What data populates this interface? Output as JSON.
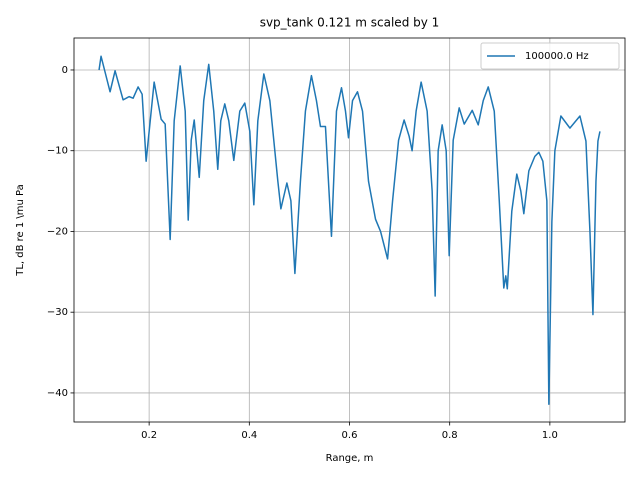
{
  "chart_data": {
    "type": "line",
    "title": "svp_tank 0.121 m scaled by 1",
    "x_label": "Range, m",
    "y_label": "TL, dB re 1 \\mu Pa",
    "xlim": [
      0.05,
      1.15
    ],
    "ylim": [
      -43.6,
      3.96
    ],
    "xticks": [
      0.2,
      0.4,
      0.6,
      0.8,
      {
        "value": 1.0,
        "label": "1.0"
      }
    ],
    "yticks": [
      {
        "value": -40,
        "label": "−40"
      },
      {
        "value": -30,
        "label": "−30"
      },
      {
        "value": -20,
        "label": "−20"
      },
      {
        "value": -10,
        "label": "−10"
      },
      0
    ],
    "grid": true,
    "legend_location": "upper right",
    "x": [
      0.1,
      0.104,
      0.122,
      0.132,
      0.148,
      0.16,
      0.168,
      0.178,
      0.186,
      0.194,
      0.21,
      0.224,
      0.232,
      0.242,
      0.25,
      0.262,
      0.272,
      0.278,
      0.284,
      0.29,
      0.3,
      0.309,
      0.319,
      0.329,
      0.337,
      0.343,
      0.351,
      0.359,
      0.369,
      0.381,
      0.391,
      0.401,
      0.409,
      0.417,
      0.429,
      0.441,
      0.457,
      0.463,
      0.475,
      0.483,
      0.491,
      0.502,
      0.512,
      0.524,
      0.534,
      0.542,
      0.552,
      0.564,
      0.574,
      0.584,
      0.592,
      0.598,
      0.606,
      0.616,
      0.626,
      0.638,
      0.652,
      0.662,
      0.676,
      0.686,
      0.698,
      0.709,
      0.719,
      0.725,
      0.733,
      0.743,
      0.755,
      0.765,
      0.771,
      0.777,
      0.785,
      0.793,
      0.799,
      0.807,
      0.819,
      0.829,
      0.845,
      0.857,
      0.867,
      0.877,
      0.889,
      0.899,
      0.908,
      0.912,
      0.915,
      0.924,
      0.934,
      0.942,
      0.948,
      0.958,
      0.97,
      0.978,
      0.986,
      0.994,
      0.998,
      1.004,
      1.01,
      1.022,
      1.04,
      1.06,
      1.072,
      1.08,
      1.086,
      1.092,
      1.096,
      1.1
    ],
    "series": [
      {
        "name": "100000.0 Hz",
        "color": "#1f77b4",
        "values": [
          0,
          1.7,
          -2.7,
          -0.1,
          -3.7,
          -3.3,
          -3.5,
          -2.1,
          -3.0,
          -11.3,
          -1.5,
          -6.1,
          -6.7,
          -21.0,
          -6.3,
          0.5,
          -5.1,
          -18.6,
          -8.7,
          -6.2,
          -13.3,
          -3.8,
          0.7,
          -5.1,
          -12.3,
          -6.3,
          -4.2,
          -6.3,
          -11.2,
          -5.1,
          -4.1,
          -7.6,
          -16.7,
          -6.3,
          -0.5,
          -3.8,
          -13.8,
          -17.2,
          -14.0,
          -16.2,
          -25.2,
          -13.8,
          -5.1,
          -0.7,
          -3.8,
          -7.0,
          -7.0,
          -20.6,
          -5.1,
          -2.2,
          -5.1,
          -8.4,
          -3.8,
          -2.7,
          -5.1,
          -13.8,
          -18.5,
          -20.0,
          -23.4,
          -16.2,
          -8.7,
          -6.2,
          -8.2,
          -10.0,
          -5.1,
          -1.5,
          -5.1,
          -15.0,
          -28.0,
          -10.0,
          -6.8,
          -10.0,
          -23.0,
          -8.7,
          -4.7,
          -6.7,
          -5.0,
          -6.8,
          -3.8,
          -2.1,
          -5.1,
          -16.2,
          -27.0,
          -25.5,
          -27.1,
          -17.5,
          -12.9,
          -15.0,
          -17.8,
          -12.5,
          -10.7,
          -10.2,
          -11.3,
          -16.2,
          -41.4,
          -18.8,
          -10.0,
          -5.7,
          -7.2,
          -5.7,
          -8.8,
          -20.0,
          -30.3,
          -13.8,
          -8.8,
          -7.6
        ]
      }
    ]
  }
}
